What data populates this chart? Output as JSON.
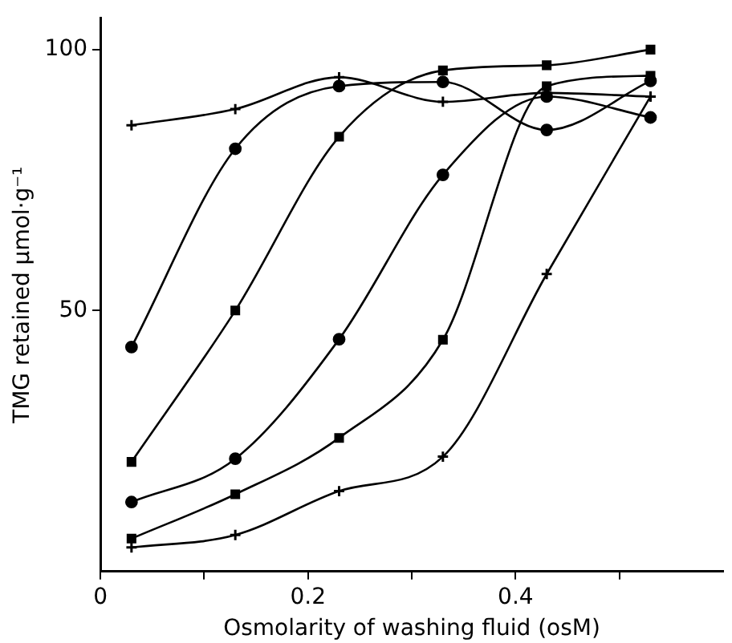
{
  "chart_data": {
    "type": "line",
    "xlabel": "Osmolarity of washing fluid (osM)",
    "ylabel": "TMG retained μmol·g⁻¹",
    "xlim": [
      0,
      0.6
    ],
    "ylim": [
      0,
      106
    ],
    "xticks": [
      0,
      {
        "value": 0.1,
        "label": null
      },
      0.2,
      {
        "value": 0.3,
        "label": null
      },
      0.4,
      {
        "value": 0.5,
        "label": null
      }
    ],
    "yticks": [
      50,
      100
    ],
    "grid": false,
    "legend": false,
    "line_style": "solid",
    "x": [
      0.03,
      0.13,
      0.23,
      0.33,
      0.43,
      0.53
    ],
    "series": [
      {
        "color": "#000000",
        "marker": "cross",
        "values": [
          85.5,
          88.6,
          94.7,
          90,
          91.7,
          91
        ]
      },
      {
        "color": "#000000",
        "marker": "circle",
        "values": [
          43,
          81,
          93,
          93.8,
          84.6,
          94
        ]
      },
      {
        "color": "#000000",
        "marker": "square",
        "values": [
          21,
          50,
          83.3,
          96,
          97,
          100
        ]
      },
      {
        "color": "#000000",
        "marker": "circle",
        "values": [
          13.3,
          21.6,
          44.5,
          76,
          91,
          87
        ]
      },
      {
        "color": "#000000",
        "marker": "square",
        "values": [
          6.3,
          14.8,
          25.6,
          44.4,
          93,
          95
        ]
      },
      {
        "color": "#000000",
        "marker": "cross",
        "values": [
          4.6,
          7,
          15.4,
          22,
          57,
          91
        ]
      }
    ]
  }
}
